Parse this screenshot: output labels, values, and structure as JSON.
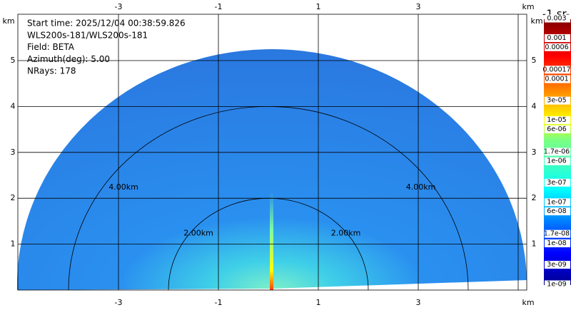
{
  "header": {
    "lines": [
      "Start time: 2025/12/04 00:38:59.826",
      "WLS200s-181/WLS200s-181",
      "Field: BETA",
      "Azimuth(deg): 5.00",
      "NRays: 178"
    ]
  },
  "axes": {
    "x_ticks": [
      -3,
      -1,
      1,
      3
    ],
    "y_ticks": [
      1,
      2,
      3,
      4,
      5
    ],
    "unit": "km"
  },
  "range_rings": [
    "2.00km",
    "4.00km"
  ],
  "colorbar": {
    "title": "-1 sr-",
    "labels": [
      "0.003",
      "0.001",
      "0.0006",
      "0.00017",
      "0.0001",
      "3e-05",
      "1e-05",
      "6e-06",
      "1.7e-06",
      "1e-06",
      "3e-07",
      "1e-07",
      "6e-08",
      "1.7e-08",
      "1e-08",
      "3e-09",
      "1e-09"
    ]
  }
}
